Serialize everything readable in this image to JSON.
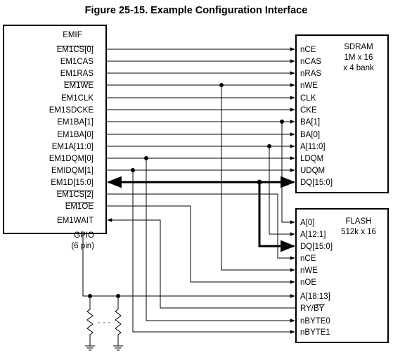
{
  "title": "Figure 25-15. Example Configuration Interface",
  "emif": {
    "name": "EMIF",
    "signals": [
      "EM1CS[0]",
      "EM1CAS",
      "EM1RAS",
      "EM1WE",
      "EM1CLK",
      "EM1SDCKE",
      "EM1BA[1]",
      "EM1BA[0]",
      "EM1A[11:0]",
      "EM1DQM[0]",
      "EMIDQM[1]",
      "EM1D[15:0]",
      "EM1CS[2]",
      "EM1OE",
      "EM1WAIT"
    ],
    "gpio_line1": "GPIO",
    "gpio_line2": "(6 pin)"
  },
  "sdram": {
    "name": "SDRAM",
    "desc_line1": "1M x 16",
    "desc_line2": "x 4 bank",
    "pins": [
      "nCE",
      "nCAS",
      "nRAS",
      "nWE",
      "CLK",
      "CKE",
      "BA[1]",
      "BA[0]",
      "A[11:0]",
      "LDQM",
      "UDQM",
      "DQ[15:0]"
    ]
  },
  "flash": {
    "name": "FLASH",
    "desc": "512k x 16",
    "pins": [
      "A[0]",
      "A[12:1]",
      "DQ[15:0]",
      "nCE",
      "nWE",
      "nOE",
      "A[18:13]",
      "RY/BY",
      "nBYTE0",
      "nBYTE1"
    ]
  },
  "resistor_ellipsis": "· · ·"
}
